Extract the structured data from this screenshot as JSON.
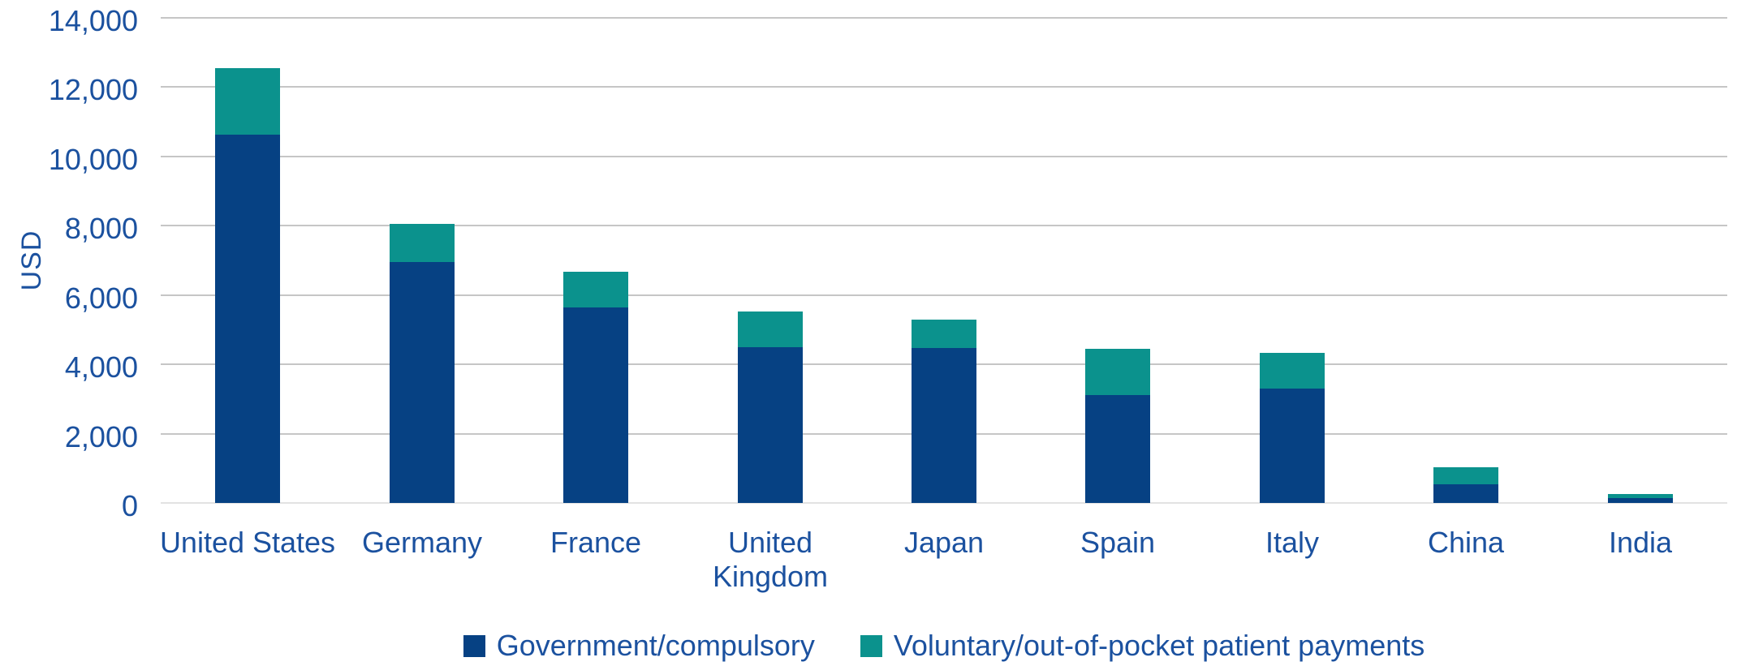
{
  "colors": {
    "government_fill": "#064183",
    "voluntary_fill": "#0b928d",
    "axis_text": "#1b519f",
    "gridline": "#c6c6c6",
    "baseline": "#e2e2e2",
    "background": "#ffffff"
  },
  "chart_data": {
    "type": "bar",
    "stacked": true,
    "ylabel": "USD",
    "ylim": [
      0,
      14000
    ],
    "ytick_interval": 2000,
    "yticks": [
      "14,000",
      "12,000",
      "10,000",
      "8,000",
      "6,000",
      "4,000",
      "2,000",
      "0"
    ],
    "categories": [
      "United States",
      "Germany",
      "France",
      "United Kingdom",
      "Japan",
      "Spain",
      "Italy",
      "China",
      "India"
    ],
    "series": [
      {
        "name": "Government/compulsory",
        "color": "#064183",
        "values": [
          10630,
          6950,
          5640,
          4500,
          4470,
          3110,
          3300,
          530,
          130
        ]
      },
      {
        "name": "Voluntary/out-of-pocket patient payments",
        "color": "#0b928d",
        "values": [
          1930,
          1100,
          1030,
          1040,
          830,
          1330,
          1030,
          490,
          120
        ]
      }
    ],
    "totals": [
      12560,
      8050,
      6670,
      5540,
      5300,
      4440,
      4330,
      1020,
      250
    ],
    "grid": true,
    "legend_position": "bottom"
  }
}
